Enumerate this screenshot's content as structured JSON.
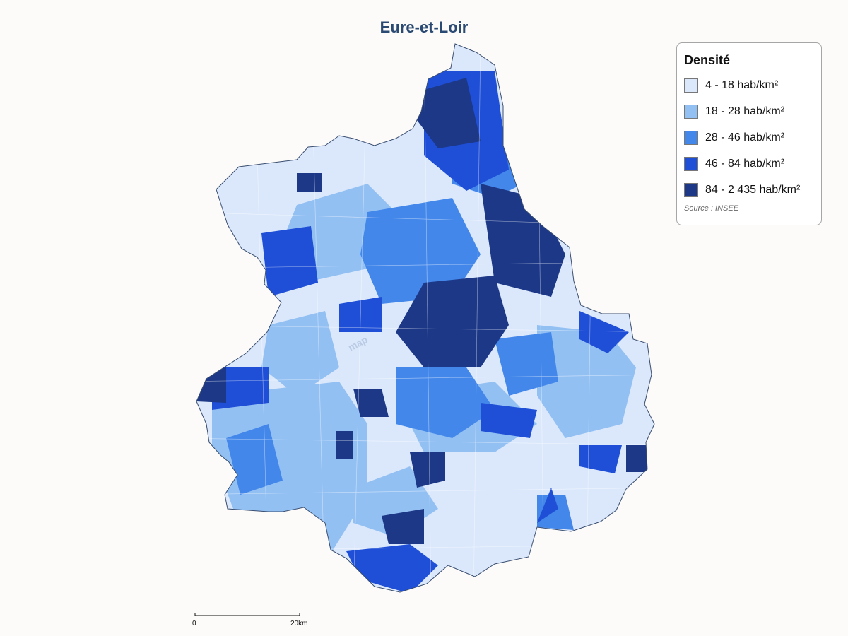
{
  "title": "Eure-et-Loir",
  "legend": {
    "title": "Densité",
    "classes": [
      {
        "label": "4 - 18 hab/km²",
        "color": "#dbe8fb"
      },
      {
        "label": "18 - 28 hab/km²",
        "color": "#93c0f3"
      },
      {
        "label": "28 - 46 hab/km²",
        "color": "#4387ea"
      },
      {
        "label": "46 - 84 hab/km²",
        "color": "#1f4fd6"
      },
      {
        "label": "84 - 2 435 hab/km²",
        "color": "#1c3887"
      }
    ],
    "source": "Source : INSEE"
  },
  "scale": {
    "start": "0",
    "end": "20km"
  },
  "watermark": "map"
}
